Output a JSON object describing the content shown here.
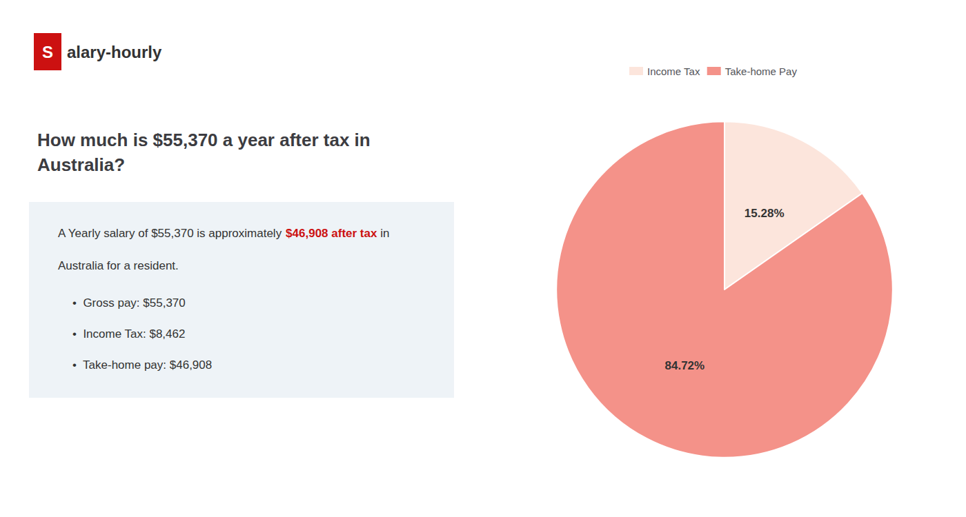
{
  "chart_data": {
    "type": "pie",
    "title": "How much is $55,370 a year after tax in\nAustralia?",
    "logo": [
      {
        "text": "S",
        "color": "#ffffff",
        "box_color": "#cc1111"
      },
      {
        "text": "alary-hourly"
      }
    ],
    "annotations": [
      [
        {
          "text": "A Yearly salary of $55,370 is approximately "
        },
        {
          "text": "$46,908 after tax",
          "color": "#cc1111"
        },
        {
          "text": " in"
        }
      ],
      [
        {
          "text": "Australia for a resident."
        }
      ],
      [
        {
          "text": "•  Gross pay: $55,370"
        }
      ],
      [
        {
          "text": "•  Income Tax: $8,462"
        }
      ],
      [
        {
          "text": "•  Take-home pay: $46,908"
        }
      ]
    ],
    "categories": [
      "Income Tax",
      "Take-home Pay"
    ],
    "values": [
      15.28,
      84.72
    ],
    "value_labels": [
      "15.28%",
      "84.72%"
    ],
    "colors": [
      "#fce5dc",
      "#f49289"
    ],
    "data_labels": true,
    "legend": "top"
  }
}
